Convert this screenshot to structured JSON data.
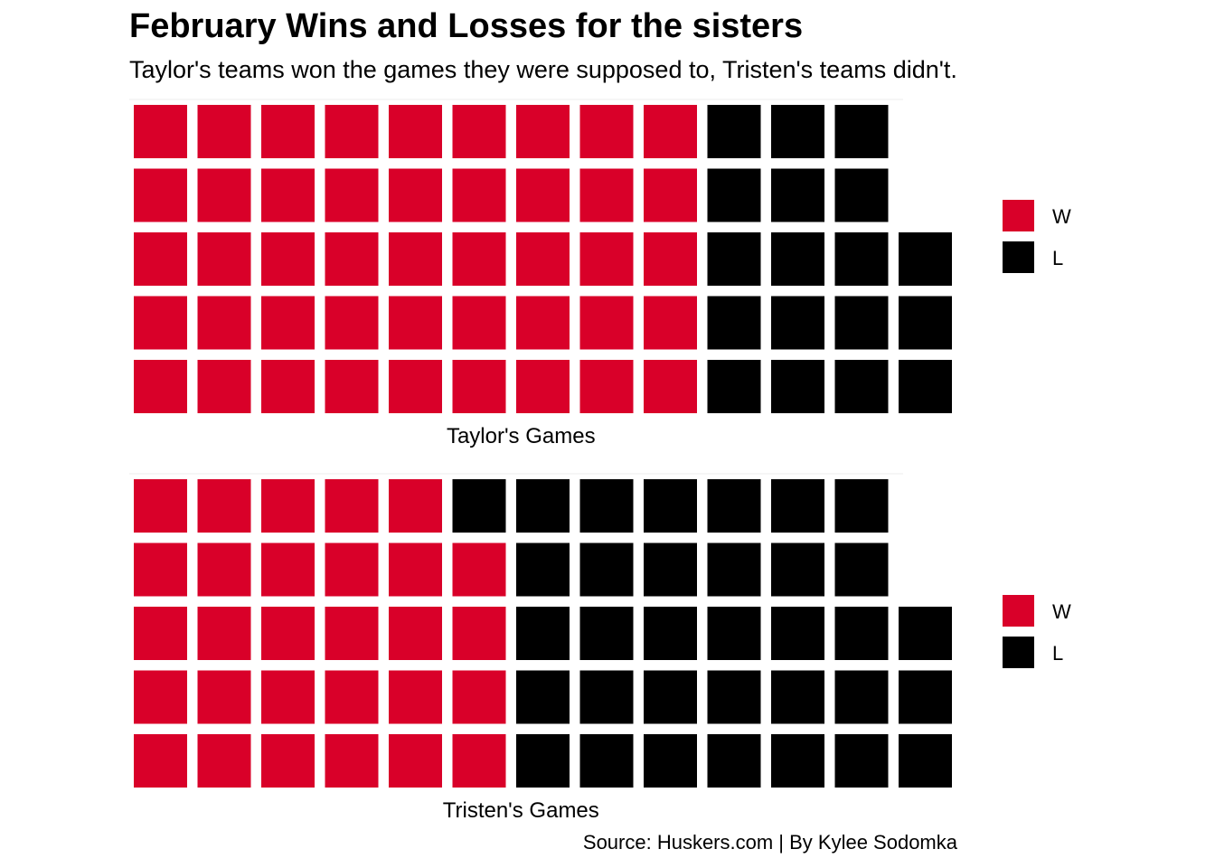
{
  "title": "February Wins and Losses for the sisters",
  "subtitle": "Taylor's teams won the games they were supposed to, Tristen's teams didn't.",
  "caption": "Source: Huskers.com | By Kylee Sodomka",
  "colors": {
    "W": "#d90029",
    "L": "#000000"
  },
  "chart_data": [
    {
      "type": "waffle",
      "xlabel": "Taylor's Games",
      "rows": 5,
      "categories": [
        "W",
        "L"
      ],
      "values": [
        45,
        18
      ],
      "legend": {
        "position": "right",
        "entries": [
          "W",
          "L"
        ]
      }
    },
    {
      "type": "waffle",
      "xlabel": "Tristen's Games",
      "rows": 5,
      "categories": [
        "W",
        "L"
      ],
      "values": [
        29,
        34
      ],
      "legend": {
        "position": "right",
        "entries": [
          "W",
          "L"
        ]
      }
    }
  ]
}
